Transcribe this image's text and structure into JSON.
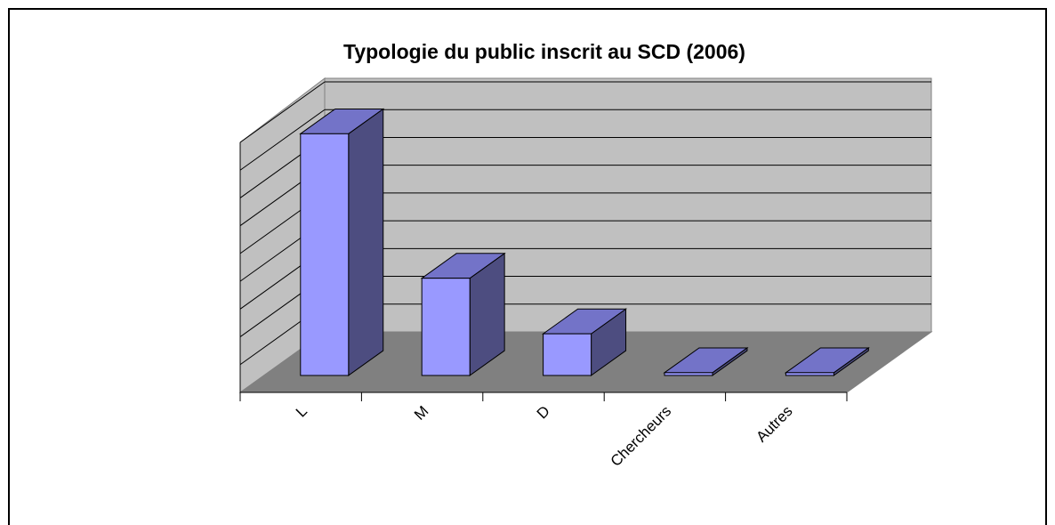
{
  "chart_data": {
    "type": "bar3d",
    "title": "Typologie du public inscrit au SCD (2006)",
    "categories": [
      "L",
      "M",
      "D",
      "Chercheurs",
      "Autres"
    ],
    "values": [
      8.7,
      3.5,
      1.5,
      0.1,
      0.1
    ],
    "color": "#9999ff",
    "ylim": [
      0,
      9
    ],
    "yticks": [
      0,
      1,
      2,
      3,
      4,
      5,
      6,
      7,
      8,
      9
    ],
    "grid": true
  }
}
